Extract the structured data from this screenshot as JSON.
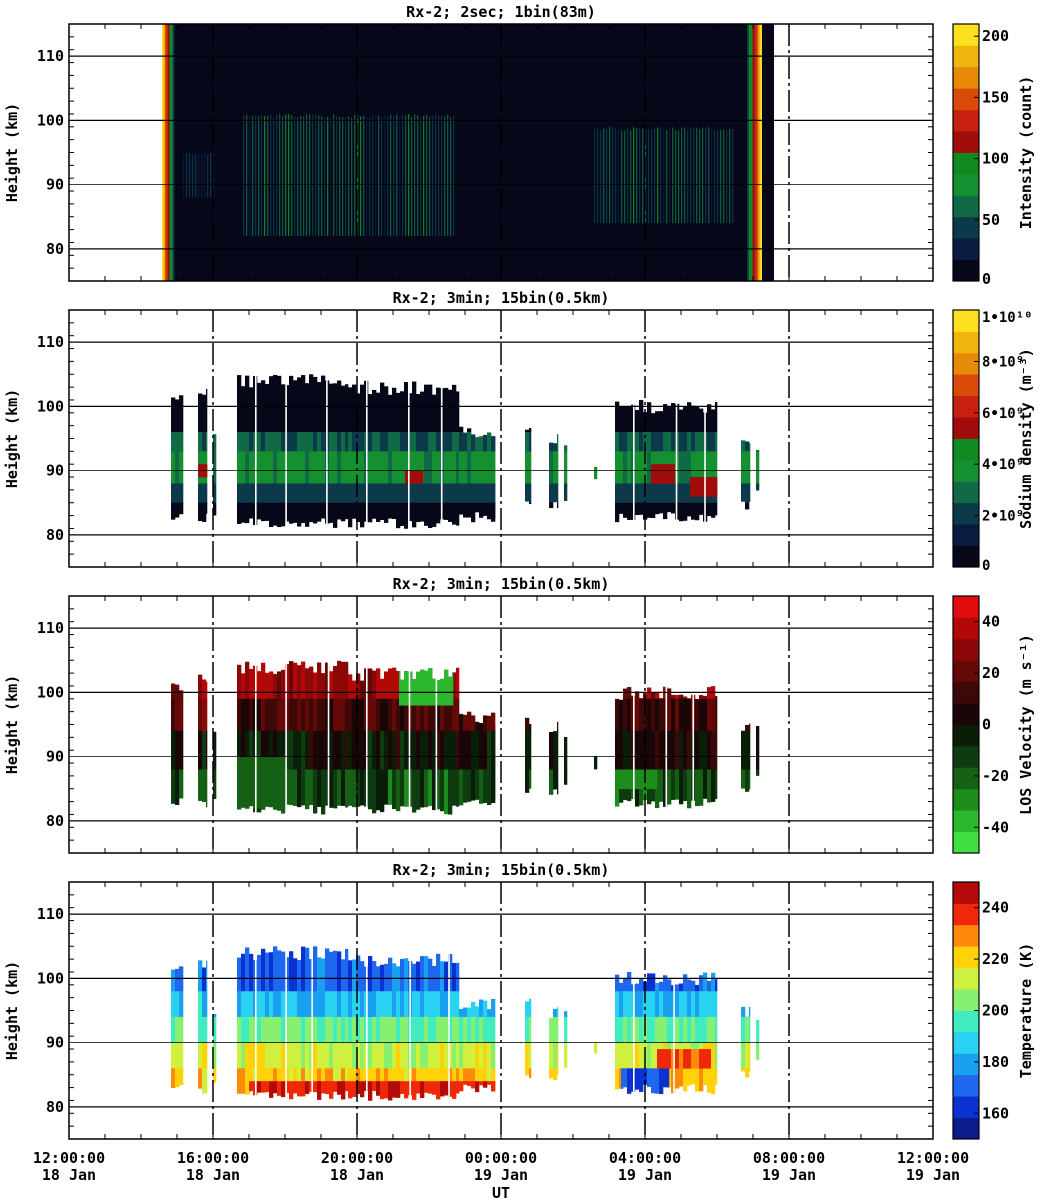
{
  "x_axis": {
    "label": "UT",
    "ticks": [
      {
        "time": "12:00:00",
        "date": "18 Jan"
      },
      {
        "time": "16:00:00",
        "date": "18 Jan"
      },
      {
        "time": "20:00:00",
        "date": "18 Jan"
      },
      {
        "time": "00:00:00",
        "date": "19 Jan"
      },
      {
        "time": "04:00:00",
        "date": "19 Jan"
      },
      {
        "time": "08:00:00",
        "date": "19 Jan"
      },
      {
        "time": "12:00:00",
        "date": "19 Jan"
      }
    ]
  },
  "colors": {
    "intensity": [
      "#06081a",
      "#0a1a40",
      "#0d3a4a",
      "#0f6a45",
      "#149030",
      "#0e8a1e",
      "#a00c0c",
      "#c82010",
      "#da4a08",
      "#e68a08",
      "#f0b410",
      "#ffe020"
    ],
    "sodium": [
      "#06081a",
      "#0a1a40",
      "#0d3a4a",
      "#0f6a45",
      "#149030",
      "#0e8a1e",
      "#a00c0c",
      "#c82010",
      "#da4a08",
      "#e68a08",
      "#f0b410",
      "#ffe020"
    ],
    "velocity": [
      "#40e040",
      "#2cb82c",
      "#1c8c1c",
      "#166016",
      "#0e3c10",
      "#081e08",
      "#1a0606",
      "#3c0808",
      "#640808",
      "#8c0808",
      "#b40808",
      "#e00e0e"
    ],
    "temperature": [
      "#0b1a8c",
      "#0a32d2",
      "#1e68f0",
      "#1aa0f0",
      "#28d2f0",
      "#40ecc0",
      "#88f070",
      "#d0f040",
      "#ffd20a",
      "#ff8a0a",
      "#f0280a",
      "#b40a0a"
    ]
  },
  "chart_data": [
    {
      "type": "heatmap",
      "title": "Rx-2;  2sec; 1bin(83m)",
      "xlabel": "UT",
      "ylabel": "Height (km)",
      "ylim": [
        75,
        115
      ],
      "yticks": [
        80,
        90,
        100,
        110
      ],
      "xlim": [
        "2015-01-18T12:00",
        "2015-01-19T12:00"
      ],
      "colorbar": {
        "label": "Intensity (count)",
        "range": [
          0,
          210
        ],
        "ticks": [
          "0",
          "50",
          "100",
          "150",
          "200"
        ],
        "tick_values": [
          0,
          50,
          100,
          150,
          200
        ]
      },
      "data_coverage": {
        "start": "14:35",
        "end": "07:15",
        "gaps": [
          [
            "07:25",
            "07:45"
          ]
        ]
      },
      "features": [
        {
          "start": "14:35",
          "end": "14:55",
          "bottom_km": 75,
          "top_km": 115,
          "level": 200
        },
        {
          "start": "06:50",
          "end": "07:15",
          "bottom_km": 75,
          "top_km": 115,
          "level": 200
        },
        {
          "start": "16:50",
          "end": "22:40",
          "bottom_km": 82,
          "top_km": 101,
          "level": 65
        },
        {
          "start": "15:10",
          "end": "16:00",
          "bottom_km": 88,
          "top_km": 95,
          "level": 50
        },
        {
          "start": "02:35",
          "end": "06:30",
          "bottom_km": 84,
          "top_km": 99,
          "level": 65
        }
      ]
    },
    {
      "type": "heatmap",
      "title": "Rx-2; 3min; 15bin(0.5km)",
      "ylabel": "Height (km)",
      "ylim": [
        75,
        115
      ],
      "yticks": [
        80,
        90,
        100,
        110
      ],
      "colorbar": {
        "label": "Sodium density (m⁻³)",
        "range": [
          0,
          10000000000
        ],
        "ticks": [
          "0",
          "2•10⁹",
          "4•10⁹",
          "6•10⁹",
          "8•10⁹",
          "1•10¹⁰"
        ],
        "tick_values": [
          0,
          2000000000,
          4000000000,
          6000000000,
          8000000000,
          10000000000
        ]
      },
      "blocks": [
        {
          "start": "14:50",
          "end": "15:10",
          "bottom_km": 82,
          "top_km": 102
        },
        {
          "start": "15:35",
          "end": "15:50",
          "bottom_km": 82,
          "top_km": 103
        },
        {
          "start": "16:00",
          "end": "16:05",
          "bottom_km": 83,
          "top_km": 96
        },
        {
          "start": "16:40",
          "end": "19:45",
          "bottom_km": 81,
          "top_km": 105
        },
        {
          "start": "19:45",
          "end": "22:50",
          "bottom_km": 81,
          "top_km": 104
        },
        {
          "start": "22:50",
          "end": "23:50",
          "bottom_km": 82,
          "top_km": 97
        },
        {
          "start": "00:40",
          "end": "00:50",
          "bottom_km": 84,
          "top_km": 97
        },
        {
          "start": "01:20",
          "end": "01:35",
          "bottom_km": 84,
          "top_km": 96
        },
        {
          "start": "01:45",
          "end": "01:50",
          "bottom_km": 85,
          "top_km": 95
        },
        {
          "start": "02:35",
          "end": "02:40",
          "bottom_km": 88,
          "top_km": 91
        },
        {
          "start": "03:10",
          "end": "06:00",
          "bottom_km": 82,
          "top_km": 101
        },
        {
          "start": "06:40",
          "end": "06:55",
          "bottom_km": 84,
          "top_km": 96
        },
        {
          "start": "07:05",
          "end": "07:10",
          "bottom_km": 86,
          "top_km": 95
        }
      ],
      "layers": [
        {
          "bottom_km": 96,
          "top_km": 115,
          "value": 500000000
        },
        {
          "bottom_km": 93,
          "top_km": 96,
          "value": 2500000000
        },
        {
          "bottom_km": 88,
          "top_km": 93,
          "value": 3500000000
        },
        {
          "bottom_km": 85,
          "top_km": 88,
          "value": 2000000000
        },
        {
          "bottom_km": 75,
          "top_km": 85,
          "value": 500000000
        }
      ],
      "features": [
        {
          "start": "15:35",
          "end": "16:00",
          "bottom_km": 89,
          "top_km": 91,
          "value": 5500000000
        },
        {
          "start": "21:20",
          "end": "21:50",
          "bottom_km": 88,
          "top_km": 90,
          "value": 5500000000
        },
        {
          "start": "04:10",
          "end": "04:50",
          "bottom_km": 88,
          "top_km": 91,
          "value": 5500000000
        },
        {
          "start": "05:15",
          "end": "06:00",
          "bottom_km": 86,
          "top_km": 89,
          "value": 5500000000
        }
      ]
    },
    {
      "type": "heatmap",
      "title": "Rx-2; 3min; 15bin(0.5km)",
      "ylabel": "Height (km)",
      "ylim": [
        75,
        115
      ],
      "yticks": [
        80,
        90,
        100,
        110
      ],
      "colorbar": {
        "label": "LOS Velocity (m s⁻¹)",
        "range": [
          -50,
          50
        ],
        "ticks": [
          "-40",
          "-20",
          "0",
          "20",
          "40"
        ],
        "tick_values": [
          -40,
          -20,
          0,
          20,
          40
        ]
      },
      "layers": [
        {
          "bottom_km": 99,
          "top_km": 115,
          "value": 30
        },
        {
          "bottom_km": 94,
          "top_km": 99,
          "value": 15
        },
        {
          "bottom_km": 88,
          "top_km": 94,
          "value": 0
        },
        {
          "bottom_km": 75,
          "top_km": 88,
          "value": -15
        }
      ],
      "features": [
        {
          "start": "21:10",
          "end": "22:40",
          "bottom_km": 98,
          "top_km": 105,
          "value": -35
        },
        {
          "start": "16:40",
          "end": "18:00",
          "bottom_km": 82,
          "top_km": 90,
          "value": -25
        },
        {
          "start": "03:10",
          "end": "04:20",
          "bottom_km": 85,
          "top_km": 88,
          "value": -30
        }
      ]
    },
    {
      "type": "heatmap",
      "title": "Rx-2; 3min; 15bin(0.5km)",
      "ylabel": "Height (km)",
      "ylim": [
        75,
        115
      ],
      "yticks": [
        80,
        90,
        100,
        110
      ],
      "colorbar": {
        "label": "Temperature (K)",
        "range": [
          150,
          250
        ],
        "ticks": [
          "160",
          "180",
          "200",
          "220",
          "240"
        ],
        "tick_values": [
          160,
          180,
          200,
          220,
          240
        ]
      },
      "layers": [
        {
          "bottom_km": 98,
          "top_km": 115,
          "value": 170
        },
        {
          "bottom_km": 94,
          "top_km": 98,
          "value": 185
        },
        {
          "bottom_km": 90,
          "top_km": 94,
          "value": 200
        },
        {
          "bottom_km": 86,
          "top_km": 90,
          "value": 212
        },
        {
          "bottom_km": 75,
          "top_km": 86,
          "value": 222
        }
      ],
      "features": [
        {
          "start": "17:00",
          "end": "23:50",
          "bottom_km": 81,
          "top_km": 84,
          "value": 240
        },
        {
          "start": "03:20",
          "end": "04:40",
          "bottom_km": 82,
          "top_km": 86,
          "value": 165
        },
        {
          "start": "04:20",
          "end": "05:50",
          "bottom_km": 86,
          "top_km": 89,
          "value": 235
        }
      ]
    }
  ]
}
